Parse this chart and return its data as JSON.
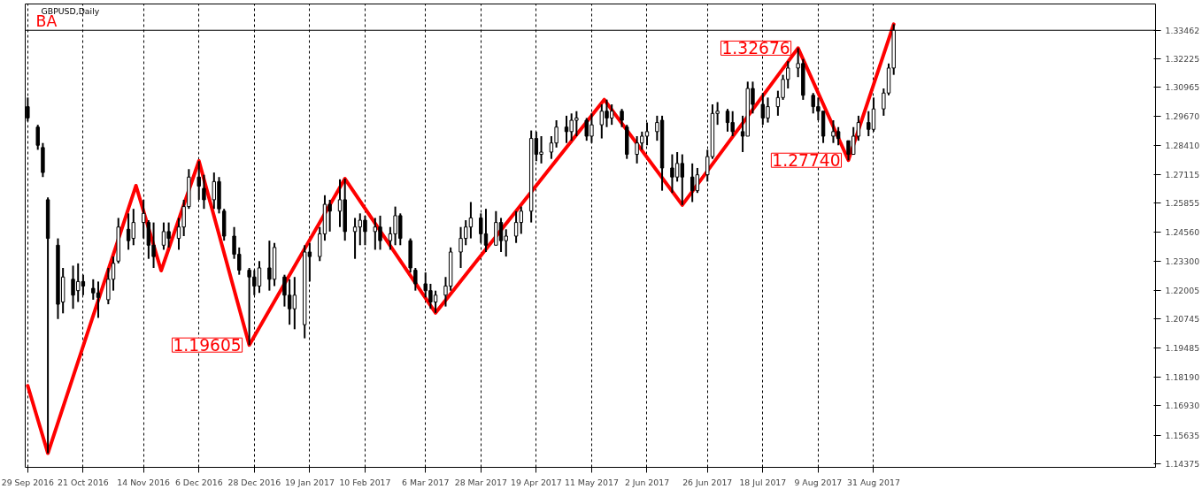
{
  "chart_data": {
    "type": "candlestick",
    "title": "GBPUSD,Daily",
    "x": [
      "2016-09-29",
      "2016-10-03",
      "2016-10-05",
      "2016-10-07",
      "2016-10-11",
      "2016-10-13",
      "2016-10-17",
      "2016-10-19",
      "2016-10-21",
      "2016-10-25",
      "2016-10-27",
      "2016-10-31",
      "2016-11-02",
      "2016-11-04",
      "2016-11-08",
      "2016-11-10",
      "2016-11-14",
      "2016-11-16",
      "2016-11-18",
      "2016-11-22",
      "2016-11-24",
      "2016-11-28",
      "2016-11-30",
      "2016-12-02",
      "2016-12-06",
      "2016-12-08",
      "2016-12-12",
      "2016-12-14",
      "2016-12-16",
      "2016-12-20",
      "2016-12-22",
      "2016-12-26",
      "2016-12-28",
      "2016-12-30",
      "2017-01-03",
      "2017-01-05",
      "2017-01-09",
      "2017-01-11",
      "2017-01-13",
      "2017-01-17",
      "2017-01-19",
      "2017-01-23",
      "2017-01-25",
      "2017-01-27",
      "2017-01-31",
      "2017-02-02",
      "2017-02-06",
      "2017-02-08",
      "2017-02-10",
      "2017-02-14",
      "2017-02-16",
      "2017-02-20",
      "2017-02-22",
      "2017-02-24",
      "2017-02-28",
      "2017-03-02",
      "2017-03-06",
      "2017-03-08",
      "2017-03-10",
      "2017-03-14",
      "2017-03-16",
      "2017-03-20",
      "2017-03-22",
      "2017-03-24",
      "2017-03-28",
      "2017-03-30",
      "2017-04-03",
      "2017-04-05",
      "2017-04-07",
      "2017-04-11",
      "2017-04-13",
      "2017-04-17",
      "2017-04-19",
      "2017-04-21",
      "2017-04-25",
      "2017-04-27",
      "2017-05-01",
      "2017-05-03",
      "2017-05-05",
      "2017-05-09",
      "2017-05-11",
      "2017-05-15",
      "2017-05-17",
      "2017-05-19",
      "2017-05-23",
      "2017-05-25",
      "2017-05-29",
      "2017-05-31",
      "2017-06-02",
      "2017-06-06",
      "2017-06-08",
      "2017-06-12",
      "2017-06-14",
      "2017-06-16",
      "2017-06-20",
      "2017-06-22",
      "2017-06-26",
      "2017-06-28",
      "2017-06-30",
      "2017-07-04",
      "2017-07-06",
      "2017-07-10",
      "2017-07-12",
      "2017-07-14",
      "2017-07-18",
      "2017-07-20",
      "2017-07-24",
      "2017-07-26",
      "2017-07-28",
      "2017-08-01",
      "2017-08-03",
      "2017-08-07",
      "2017-08-09",
      "2017-08-11",
      "2017-08-15",
      "2017-08-17",
      "2017-08-21",
      "2017-08-23",
      "2017-08-25",
      "2017-08-29",
      "2017-08-31",
      "2017-09-04",
      "2017-09-06",
      "2017-09-08"
    ],
    "ohlc": [
      [
        1.301,
        1.305,
        1.2945,
        1.296
      ],
      [
        1.292,
        1.293,
        1.282,
        1.284
      ],
      [
        1.283,
        1.285,
        1.27,
        1.272
      ],
      [
        1.26,
        1.261,
        1.1484,
        1.243
      ],
      [
        1.24,
        1.243,
        1.2075,
        1.214
      ],
      [
        1.215,
        1.23,
        1.21,
        1.226
      ],
      [
        1.225,
        1.231,
        1.212,
        1.218
      ],
      [
        1.22,
        1.232,
        1.215,
        1.224
      ],
      [
        1.224,
        1.227,
        1.218,
        1.222
      ],
      [
        1.221,
        1.225,
        1.216,
        1.219
      ],
      [
        1.219,
        1.224,
        1.208,
        1.217
      ],
      [
        1.216,
        1.23,
        1.214,
        1.225
      ],
      [
        1.225,
        1.235,
        1.22,
        1.232
      ],
      [
        1.233,
        1.252,
        1.232,
        1.248
      ],
      [
        1.247,
        1.254,
        1.238,
        1.242
      ],
      [
        1.243,
        1.256,
        1.24,
        1.25
      ],
      [
        1.25,
        1.26,
        1.243,
        1.254
      ],
      [
        1.25,
        1.251,
        1.234,
        1.24
      ],
      [
        1.24,
        1.25,
        1.23,
        1.235
      ],
      [
        1.24,
        1.25,
        1.238,
        1.246
      ],
      [
        1.246,
        1.25,
        1.239,
        1.243
      ],
      [
        1.243,
        1.252,
        1.238,
        1.248
      ],
      [
        1.248,
        1.26,
        1.244,
        1.257
      ],
      [
        1.257,
        1.2735,
        1.256,
        1.27
      ],
      [
        1.27,
        1.277,
        1.26,
        1.266
      ],
      [
        1.265,
        1.271,
        1.256,
        1.26
      ],
      [
        1.26,
        1.272,
        1.256,
        1.268
      ],
      [
        1.268,
        1.27,
        1.254,
        1.256
      ],
      [
        1.255,
        1.256,
        1.242,
        1.244
      ],
      [
        1.244,
        1.248,
        1.234,
        1.236
      ],
      [
        1.236,
        1.239,
        1.227,
        1.229
      ],
      [
        1.229,
        1.23,
        1.19605,
        1.226
      ],
      [
        1.226,
        1.229,
        1.218,
        1.222
      ],
      [
        1.222,
        1.233,
        1.219,
        1.23
      ],
      [
        1.23,
        1.242,
        1.22,
        1.225
      ],
      [
        1.225,
        1.241,
        1.222,
        1.239
      ],
      [
        1.226,
        1.227,
        1.213,
        1.218
      ],
      [
        1.218,
        1.225,
        1.205,
        1.212
      ],
      [
        1.212,
        1.226,
        1.203,
        1.218
      ],
      [
        1.205,
        1.24,
        1.199,
        1.237
      ],
      [
        1.237,
        1.241,
        1.224,
        1.235
      ],
      [
        1.235,
        1.248,
        1.233,
        1.245
      ],
      [
        1.245,
        1.262,
        1.242,
        1.258
      ],
      [
        1.258,
        1.26,
        1.246,
        1.255
      ],
      [
        1.255,
        1.269,
        1.248,
        1.26
      ],
      [
        1.26,
        1.2693,
        1.242,
        1.246
      ],
      [
        1.246,
        1.252,
        1.234,
        1.248
      ],
      [
        1.248,
        1.254,
        1.24,
        1.251
      ],
      [
        1.251,
        1.253,
        1.24,
        1.246
      ],
      [
        1.246,
        1.252,
        1.238,
        1.248
      ],
      [
        1.248,
        1.253,
        1.238,
        1.242
      ],
      [
        1.242,
        1.248,
        1.238,
        1.245
      ],
      [
        1.245,
        1.257,
        1.24,
        1.253
      ],
      [
        1.253,
        1.254,
        1.24,
        1.243
      ],
      [
        1.242,
        1.243,
        1.228,
        1.23
      ],
      [
        1.229,
        1.23,
        1.22,
        1.223
      ],
      [
        1.223,
        1.228,
        1.217,
        1.22
      ],
      [
        1.22,
        1.223,
        1.212,
        1.215
      ],
      [
        1.215,
        1.22,
        1.2102,
        1.218
      ],
      [
        1.218,
        1.226,
        1.213,
        1.222
      ],
      [
        1.222,
        1.239,
        1.22,
        1.237
      ],
      [
        1.237,
        1.248,
        1.23,
        1.243
      ],
      [
        1.243,
        1.251,
        1.24,
        1.248
      ],
      [
        1.248,
        1.259,
        1.243,
        1.252
      ],
      [
        1.252,
        1.254,
        1.241,
        1.245
      ],
      [
        1.245,
        1.256,
        1.237,
        1.24
      ],
      [
        1.24,
        1.255,
        1.24,
        1.25
      ],
      [
        1.25,
        1.252,
        1.237,
        1.242
      ],
      [
        1.242,
        1.247,
        1.235,
        1.244
      ],
      [
        1.244,
        1.255,
        1.241,
        1.25
      ],
      [
        1.25,
        1.257,
        1.245,
        1.255
      ],
      [
        1.255,
        1.2905,
        1.25,
        1.287
      ],
      [
        1.287,
        1.29,
        1.277,
        1.28
      ],
      [
        1.28,
        1.288,
        1.276,
        1.281
      ],
      [
        1.281,
        1.288,
        1.278,
        1.285
      ],
      [
        1.285,
        1.295,
        1.283,
        1.292
      ],
      [
        1.292,
        1.297,
        1.285,
        1.29
      ],
      [
        1.29,
        1.298,
        1.286,
        1.295
      ],
      [
        1.295,
        1.299,
        1.288,
        1.296
      ],
      [
        1.295,
        1.296,
        1.286,
        1.288
      ],
      [
        1.288,
        1.298,
        1.285,
        1.293
      ],
      [
        1.293,
        1.302,
        1.287,
        1.299
      ],
      [
        1.299,
        1.3041,
        1.292,
        1.296
      ],
      [
        1.296,
        1.302,
        1.293,
        1.299
      ],
      [
        1.299,
        1.3,
        1.292,
        1.295
      ],
      [
        1.292,
        1.293,
        1.278,
        1.28
      ],
      [
        1.28,
        1.288,
        1.276,
        1.285
      ],
      [
        1.285,
        1.29,
        1.282,
        1.288
      ],
      [
        1.288,
        1.294,
        1.284,
        1.29
      ],
      [
        1.29,
        1.297,
        1.286,
        1.294
      ],
      [
        1.295,
        1.297,
        1.264,
        1.274
      ],
      [
        1.274,
        1.28,
        1.263,
        1.27
      ],
      [
        1.27,
        1.281,
        1.268,
        1.276
      ],
      [
        1.276,
        1.28,
        1.2577,
        1.27
      ],
      [
        1.27,
        1.276,
        1.259,
        1.264
      ],
      [
        1.264,
        1.274,
        1.263,
        1.271
      ],
      [
        1.271,
        1.282,
        1.268,
        1.279
      ],
      [
        1.279,
        1.302,
        1.278,
        1.298
      ],
      [
        1.298,
        1.303,
        1.293,
        1.299
      ],
      [
        1.299,
        1.3,
        1.29,
        1.294
      ],
      [
        1.294,
        1.299,
        1.288,
        1.29
      ],
      [
        1.29,
        1.297,
        1.281,
        1.288
      ],
      [
        1.288,
        1.312,
        1.288,
        1.309
      ],
      [
        1.309,
        1.312,
        1.298,
        1.302
      ],
      [
        1.302,
        1.307,
        1.293,
        1.296
      ],
      [
        1.296,
        1.305,
        1.294,
        1.301
      ],
      [
        1.301,
        1.308,
        1.297,
        1.305
      ],
      [
        1.305,
        1.315,
        1.304,
        1.313
      ],
      [
        1.313,
        1.321,
        1.309,
        1.318
      ],
      [
        1.318,
        1.32676,
        1.314,
        1.32
      ],
      [
        1.32,
        1.322,
        1.304,
        1.306
      ],
      [
        1.306,
        1.307,
        1.298,
        1.301
      ],
      [
        1.301,
        1.305,
        1.295,
        1.299
      ],
      [
        1.299,
        1.299,
        1.285,
        1.288
      ],
      [
        1.288,
        1.295,
        1.285,
        1.29
      ],
      [
        1.29,
        1.292,
        1.284,
        1.287
      ],
      [
        1.286,
        1.286,
        1.2774,
        1.28
      ],
      [
        1.28,
        1.292,
        1.28,
        1.288
      ],
      [
        1.288,
        1.297,
        1.286,
        1.294
      ],
      [
        1.294,
        1.299,
        1.288,
        1.291
      ],
      [
        1.291,
        1.305,
        1.29,
        1.3
      ],
      [
        1.3,
        1.309,
        1.297,
        1.307
      ],
      [
        1.307,
        1.32,
        1.306,
        1.318
      ],
      [
        1.318,
        1.3373,
        1.315,
        1.3346
      ]
    ],
    "series": [
      {
        "type": "line",
        "color": "#ff0000",
        "x": [
          "2016-09-29",
          "2016-10-07",
          "2016-11-11",
          "2016-11-21",
          "2016-12-06",
          "2016-12-26",
          "2017-02-02",
          "2017-03-10",
          "2017-05-16",
          "2017-06-16",
          "2017-08-01",
          "2017-08-21",
          "2017-09-08"
        ],
        "values": [
          1.1781,
          1.1484,
          1.2662,
          1.2288,
          1.2771,
          1.19605,
          1.2693,
          1.2102,
          1.3041,
          1.2577,
          1.32676,
          1.2774,
          1.3373
        ]
      }
    ],
    "xlim": [
      "2016-09-28",
      "2017-12-21"
    ],
    "xticks": [
      {
        "value": "2016-09-29",
        "label": "29 Sep 2016"
      },
      {
        "value": "2016-10-21",
        "label": "21 Oct 2016"
      },
      {
        "value": "2016-11-14",
        "label": "14 Nov 2016"
      },
      {
        "value": "2016-12-06",
        "label": "6 Dec 2016"
      },
      {
        "value": "2016-12-28",
        "label": "28 Dec 2016"
      },
      {
        "value": "2017-01-19",
        "label": "19 Jan 2017"
      },
      {
        "value": "2017-02-10",
        "label": "10 Feb 2017"
      },
      {
        "value": "2017-03-06",
        "label": "6 Mar 2017"
      },
      {
        "value": "2017-03-28",
        "label": "28 Mar 2017"
      },
      {
        "value": "2017-04-19",
        "label": "19 Apr 2017"
      },
      {
        "value": "2017-05-11",
        "label": "11 May 2017"
      },
      {
        "value": "2017-06-02",
        "label": "2 Jun 2017"
      },
      {
        "value": "2017-06-26",
        "label": "26 Jun 2017"
      },
      {
        "value": "2017-07-18",
        "label": "18 Jul 2017"
      },
      {
        "value": "2017-08-09",
        "label": "9 Aug 2017"
      },
      {
        "value": "2017-08-31",
        "label": "31 Aug 2017"
      }
    ],
    "ylim": [
      1.1422,
      1.3462
    ],
    "yticks": [
      1.14375,
      1.15635,
      {
        "value": 1.1693,
        "label": "1.16930"
      },
      {
        "value": 1.1819,
        "label": "1.18190"
      },
      1.19485,
      1.20745,
      1.22005,
      {
        "value": 1.233,
        "label": "1.23300"
      },
      {
        "value": 1.2456,
        "label": "1.24560"
      },
      1.25855,
      1.27115,
      {
        "value": 1.2841,
        "label": "1.28410"
      },
      {
        "value": 1.2967,
        "label": "1.29670"
      },
      1.30965,
      1.32225
    ],
    "grid": "x",
    "ref_lines": [
      {
        "axis": "y",
        "value": 1.33462,
        "label": "1.33462"
      }
    ],
    "annotations": [
      "BA",
      {
        "text": "1.19605",
        "x": "2016-12-26",
        "y": 1.19605
      },
      {
        "text": "1.32676",
        "x": "2017-08-01",
        "y": 1.32676
      },
      {
        "text": "1.27740",
        "x": "2017-08-21",
        "y": 1.2774
      }
    ]
  }
}
